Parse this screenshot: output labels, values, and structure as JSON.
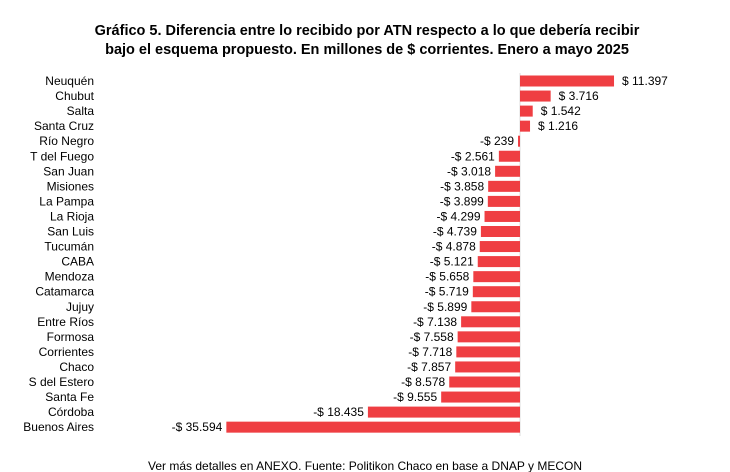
{
  "chart_data": {
    "type": "bar",
    "orientation": "horizontal",
    "title": [
      "Gráfico 5. Diferencia entre lo recibido por ATN respecto a lo que debería recibir",
      "bajo el esquema propuesto. En millones de $ corrientes. Enero a mayo 2025"
    ],
    "xlabel": "",
    "ylabel": "",
    "grid": false,
    "categories": [
      "Neuquén",
      "Chubut",
      "Salta",
      "Santa Cruz",
      "Río Negro",
      "T del Fuego",
      "San Juan",
      "Misiones",
      "La Pampa",
      "La Rioja",
      "San Luis",
      "Tucumán",
      "CABA",
      "Mendoza",
      "Catamarca",
      "Jujuy",
      "Entre Ríos",
      "Formosa",
      "Corrientes",
      "Chaco",
      "S del Estero",
      "Santa Fe",
      "Córdoba",
      "Buenos Aires"
    ],
    "values": [
      11397,
      3716,
      1542,
      1216,
      -239,
      -2561,
      -3018,
      -3858,
      -3899,
      -4299,
      -4739,
      -4878,
      -5121,
      -5658,
      -5719,
      -5899,
      -7138,
      -7558,
      -7718,
      -7857,
      -8578,
      -9555,
      -18435,
      -35594
    ],
    "data_labels": [
      "$ 11.397",
      "$ 3.716",
      "$ 1.542",
      "$ 1.216",
      "-$ 239",
      "-$ 2.561",
      "-$ 3.018",
      "-$ 3.858",
      "-$ 3.899",
      "-$ 4.299",
      "-$ 4.739",
      "-$ 4.878",
      "-$ 5.121",
      "-$ 5.658",
      "-$ 5.719",
      "-$ 5.899",
      "-$ 7.138",
      "-$ 7.558",
      "-$ 7.718",
      "-$ 7.857",
      "-$ 8.578",
      "-$ 9.555",
      "-$ 18.435",
      "-$ 35.594"
    ],
    "bar_color": "#ef3e42",
    "footnote": "Ver más detalles en ANEXO. Fuente: Politikon Chaco en base a DNAP y MECON"
  }
}
